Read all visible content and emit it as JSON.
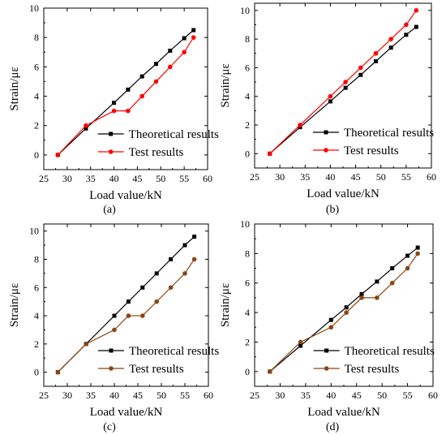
{
  "chart_data": [
    {
      "type": "line",
      "panel_label": "(a)",
      "xlabel": "Load value/kN",
      "ylabel": "Strain/με",
      "xlim": [
        25,
        60
      ],
      "ylim": [
        -1,
        10
      ],
      "xticks": [
        25,
        30,
        35,
        40,
        45,
        50,
        55,
        60
      ],
      "yticks": [
        0,
        2,
        4,
        6,
        8,
        10
      ],
      "legend_position": "lower-right",
      "series": [
        {
          "name": "Theoretical results",
          "color": "#000000",
          "marker": "square",
          "x": [
            28,
            34,
            40,
            43,
            46,
            49,
            52,
            55,
            57
          ],
          "y": [
            0,
            1.8,
            3.55,
            4.45,
            5.35,
            6.2,
            7.1,
            7.95,
            8.5
          ]
        },
        {
          "name": "Test results",
          "color": "#ff0000",
          "marker": "circle",
          "x": [
            28,
            34,
            40,
            43,
            46,
            49,
            52,
            55,
            57
          ],
          "y": [
            0,
            2,
            3,
            3,
            4,
            5,
            6,
            7,
            8
          ]
        }
      ]
    },
    {
      "type": "line",
      "panel_label": "(b)",
      "xlabel": "Load value/kN",
      "ylabel": "Strain/με",
      "xlim": [
        25,
        60
      ],
      "ylim": [
        -1,
        10.5
      ],
      "xticks": [
        25,
        30,
        35,
        40,
        45,
        50,
        55,
        60
      ],
      "yticks": [
        0,
        2,
        4,
        6,
        8,
        10
      ],
      "legend_position": "lower-right",
      "series": [
        {
          "name": "Theoretical results",
          "color": "#000000",
          "marker": "square",
          "x": [
            28,
            34,
            40,
            43,
            46,
            49,
            52,
            55,
            57
          ],
          "y": [
            0,
            1.85,
            3.65,
            4.6,
            5.5,
            6.45,
            7.4,
            8.3,
            8.85
          ]
        },
        {
          "name": "Test results",
          "color": "#ff0000",
          "marker": "circle",
          "x": [
            28,
            34,
            40,
            43,
            46,
            49,
            52,
            55,
            57
          ],
          "y": [
            0,
            2,
            4,
            5,
            6,
            7,
            8,
            9,
            10
          ]
        }
      ]
    },
    {
      "type": "line",
      "panel_label": "(c)",
      "xlabel": "Load value/kN",
      "ylabel": "Strain/με",
      "xlim": [
        25,
        60
      ],
      "ylim": [
        -1,
        10.5
      ],
      "xticks": [
        25,
        30,
        35,
        40,
        45,
        50,
        55,
        60
      ],
      "yticks": [
        0,
        2,
        4,
        6,
        8,
        10
      ],
      "legend_position": "lower-right",
      "series": [
        {
          "name": "Theoretical results",
          "color": "#000000",
          "marker": "square",
          "x": [
            28,
            34,
            40,
            43,
            46,
            49,
            52,
            55,
            57
          ],
          "y": [
            0,
            2,
            4,
            5,
            6,
            7,
            8,
            9,
            9.6
          ]
        },
        {
          "name": "Test results",
          "color": "#8b4513",
          "marker": "circle",
          "x": [
            28,
            34,
            40,
            43,
            46,
            49,
            52,
            55,
            57
          ],
          "y": [
            0,
            2,
            3,
            4,
            4,
            5,
            6,
            7,
            8
          ]
        }
      ]
    },
    {
      "type": "line",
      "panel_label": "(d)",
      "xlabel": "Load value/kN",
      "ylabel": "Strain/με",
      "xlim": [
        25,
        60
      ],
      "ylim": [
        -1,
        10
      ],
      "xticks": [
        25,
        30,
        35,
        40,
        45,
        50,
        55,
        60
      ],
      "yticks": [
        0,
        2,
        4,
        6,
        8,
        10
      ],
      "legend_position": "lower-right",
      "series": [
        {
          "name": "Theoretical results",
          "color": "#000000",
          "marker": "square",
          "x": [
            28,
            34,
            40,
            43,
            46,
            49,
            52,
            55,
            57
          ],
          "y": [
            0,
            1.75,
            3.5,
            4.35,
            5.25,
            6.1,
            7,
            7.85,
            8.4
          ]
        },
        {
          "name": "Test results",
          "color": "#8b4513",
          "marker": "circle",
          "x": [
            28,
            34,
            40,
            43,
            46,
            49,
            52,
            55,
            57
          ],
          "y": [
            0,
            2,
            3,
            4,
            5,
            5,
            6,
            7,
            8
          ]
        }
      ]
    }
  ]
}
